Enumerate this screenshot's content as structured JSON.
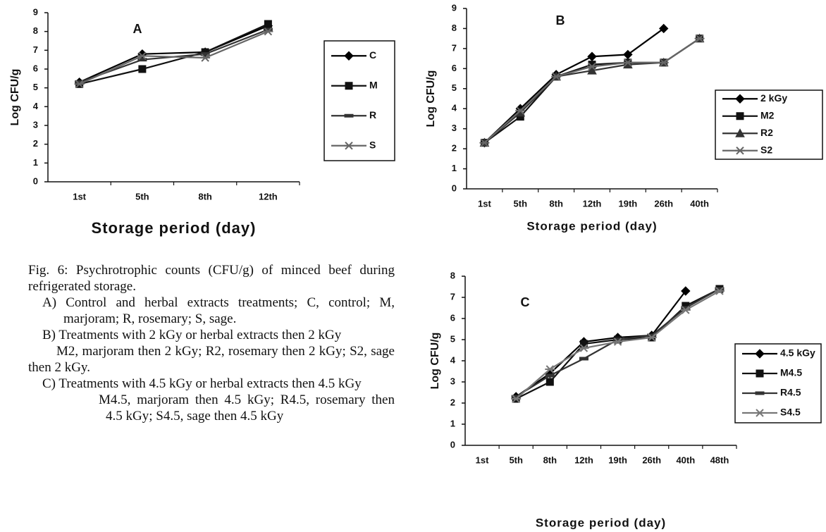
{
  "chart_data": [
    {
      "type": "line",
      "annotation": "A",
      "x_label": "Storage period (day)",
      "y_label": "Log CFU/g",
      "categories": [
        "1st",
        "5th",
        "8th",
        "12th"
      ],
      "ylim": [
        0,
        9
      ],
      "yticks": [
        0,
        1,
        2,
        3,
        4,
        5,
        6,
        7,
        8,
        9
      ],
      "legend": "right",
      "series": [
        {
          "name": "C",
          "color": "#000000",
          "marker": "diamond",
          "values": [
            5.3,
            6.8,
            6.9,
            8.3
          ]
        },
        {
          "name": "M",
          "color": "#111111",
          "marker": "square",
          "values": [
            5.2,
            6.0,
            6.9,
            8.4
          ]
        },
        {
          "name": "R",
          "color": "#333333",
          "marker": "dash",
          "values": [
            5.3,
            6.5,
            6.8,
            8.1
          ]
        },
        {
          "name": "S",
          "color": "#666666",
          "marker": "x",
          "values": [
            5.2,
            6.7,
            6.6,
            8.0
          ]
        }
      ]
    },
    {
      "type": "line",
      "annotation": "B",
      "x_label": "Storage period (day)",
      "y_label": "Log CFU/g",
      "categories": [
        "1st",
        "5th",
        "8th",
        "12th",
        "19th",
        "26th",
        "40th"
      ],
      "ylim": [
        0,
        9
      ],
      "yticks": [
        0,
        1,
        2,
        3,
        4,
        5,
        6,
        7,
        8,
        9
      ],
      "legend": "right",
      "series": [
        {
          "name": "2 kGy",
          "color": "#000000",
          "marker": "diamond",
          "values": [
            2.3,
            4.0,
            5.7,
            6.6,
            6.7,
            8.0,
            null
          ]
        },
        {
          "name": "M2",
          "color": "#111111",
          "marker": "square",
          "values": [
            2.3,
            3.6,
            5.6,
            6.2,
            6.3,
            6.3,
            7.5
          ]
        },
        {
          "name": "R2",
          "color": "#333333",
          "marker": "triangle",
          "values": [
            2.3,
            3.8,
            5.6,
            5.9,
            6.2,
            6.3,
            7.5
          ]
        },
        {
          "name": "S2",
          "color": "#666666",
          "marker": "x",
          "values": [
            2.3,
            3.9,
            5.6,
            6.1,
            6.3,
            6.3,
            7.5
          ]
        }
      ]
    },
    {
      "type": "line",
      "annotation": "C",
      "x_label": "Storage period (day)",
      "y_label": "Log CFU/g",
      "categories": [
        "1st",
        "5th",
        "8th",
        "12th",
        "19th",
        "26th",
        "40th",
        "48th"
      ],
      "ylim": [
        0,
        8
      ],
      "yticks": [
        0,
        1,
        2,
        3,
        4,
        5,
        6,
        7,
        8
      ],
      "legend": "right",
      "series": [
        {
          "name": "4.5 kGy",
          "color": "#000000",
          "marker": "diamond",
          "values": [
            null,
            2.3,
            3.4,
            4.9,
            5.1,
            5.2,
            7.3,
            null
          ]
        },
        {
          "name": "M4.5",
          "color": "#111111",
          "marker": "square",
          "values": [
            null,
            2.2,
            3.0,
            4.8,
            5.0,
            5.1,
            6.6,
            7.4
          ]
        },
        {
          "name": "R4.5",
          "color": "#333333",
          "marker": "dash",
          "values": [
            null,
            2.3,
            3.3,
            4.1,
            5.0,
            5.2,
            6.5,
            7.4
          ]
        },
        {
          "name": "S4.5",
          "color": "#777777",
          "marker": "x",
          "values": [
            null,
            2.2,
            3.6,
            4.6,
            4.9,
            5.1,
            6.4,
            7.3
          ]
        }
      ]
    }
  ],
  "caption": [
    "Fig. 6: Psychrotrophic counts (CFU/g) of minced beef during refrigerated storage.",
    "A) Control and herbal extracts treatments; C, control; M, marjoram; R, rosemary; S, sage.",
    "B) Treatments with 2 kGy or herbal extracts then 2 kGy",
    "M2, marjoram then 2 kGy; R2, rosemary then 2 kGy; S2, sage then 2 kGy.",
    "C) Treatments with 4.5 kGy or herbal extracts then 4.5 kGy",
    "M4.5, marjoram then 4.5 kGy; R4.5, rosemary then 4.5 kGy; S4.5, sage then 4.5 kGy"
  ]
}
